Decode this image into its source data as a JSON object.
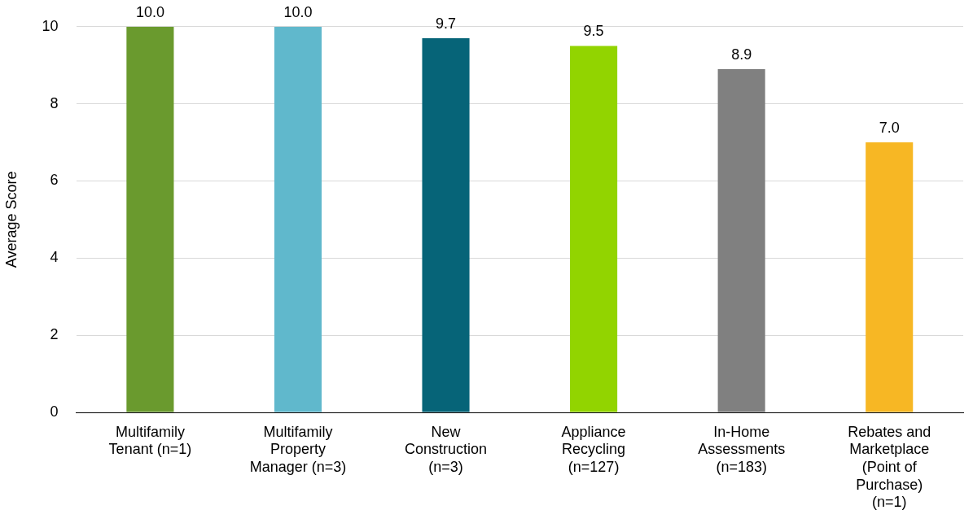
{
  "chart_data": {
    "type": "bar",
    "ylabel": "Average Score",
    "categories": [
      "Multifamily Tenant (n=1)",
      "Multifamily Property Manager (n=3)",
      "New Construction (n=3)",
      "Appliance Recycling (n=127)",
      "In-Home Assessments (n=183)",
      "Rebates and Marketplace (Point of Purchase) (n=1)"
    ],
    "values": [
      10.0,
      10.0,
      9.7,
      9.5,
      8.9,
      7.0
    ],
    "value_labels": [
      "10.0",
      "10.0",
      "9.7",
      "9.5",
      "8.9",
      "7.0"
    ],
    "colors": [
      "#6a9a2e",
      "#60b8cc",
      "#066478",
      "#92d400",
      "#808080",
      "#f7b724"
    ],
    "ylim": [
      0,
      10
    ],
    "yticks": [
      0,
      2,
      4,
      6,
      8,
      10
    ],
    "grid": "y",
    "legend": false
  }
}
